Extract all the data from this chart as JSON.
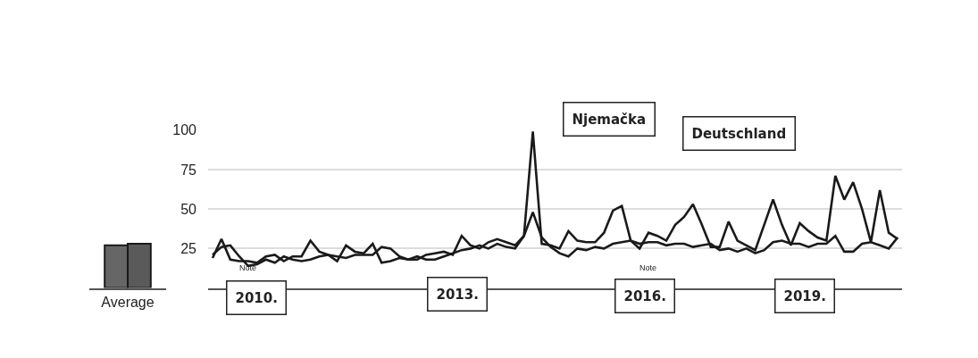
{
  "chart_data": [
    {
      "type": "line",
      "categories": [
        null,
        null,
        null,
        null,
        null,
        null,
        null,
        null,
        null,
        null,
        null,
        null,
        null,
        null,
        null,
        null,
        null,
        null,
        null,
        null,
        null,
        null,
        null,
        null,
        null,
        null,
        null,
        null,
        null,
        null,
        null,
        null,
        null,
        null,
        null,
        null,
        null,
        null,
        null,
        null,
        null,
        null,
        null,
        null,
        null,
        null,
        null,
        null,
        null,
        null,
        null,
        null,
        null,
        null,
        null,
        null,
        null,
        null,
        null,
        null,
        null,
        null,
        null,
        null,
        null,
        null,
        null,
        null,
        null,
        null,
        null,
        null,
        null,
        null,
        null,
        null,
        null,
        null
      ],
      "series": [
        {
          "color": "#1a1a1a",
          "values": [
            19,
            31,
            18,
            17,
            17,
            16,
            20,
            21,
            17,
            20,
            20,
            30,
            23,
            21,
            17,
            27,
            23,
            22,
            28,
            16,
            17,
            19,
            18,
            20,
            18,
            18,
            20,
            22,
            24,
            25,
            27,
            25,
            28,
            26,
            25,
            33,
            99,
            28,
            27,
            25,
            36,
            30,
            29,
            29,
            35,
            49,
            52,
            30,
            25,
            35,
            33,
            30,
            40,
            45,
            53,
            40,
            26,
            26,
            42,
            30,
            27,
            24,
            40,
            56,
            40,
            27,
            41,
            36,
            32,
            30,
            71,
            56,
            67,
            50,
            29,
            62,
            35,
            31
          ]
        },
        {
          "color": "#1a1a1a",
          "values": [
            21,
            26,
            27,
            20,
            14,
            15,
            18,
            16,
            20,
            18,
            17,
            18,
            20,
            21,
            20,
            19,
            21,
            21,
            21,
            26,
            25,
            20,
            18,
            18,
            21,
            22,
            23,
            21,
            33,
            27,
            25,
            29,
            31,
            29,
            27,
            33,
            48,
            32,
            26,
            22,
            20,
            25,
            24,
            26,
            25,
            28,
            29,
            30,
            28,
            29,
            29,
            27,
            28,
            28,
            26,
            27,
            28,
            24,
            25,
            23,
            25,
            22,
            24,
            29,
            30,
            28,
            28,
            26,
            28,
            28,
            33,
            23,
            23,
            28,
            29,
            27,
            25,
            32
          ]
        }
      ],
      "ylim": [
        0,
        100
      ],
      "yticks": [
        25,
        50,
        75,
        100
      ],
      "grid": "y",
      "tick_labels": "y",
      "marker": "none",
      "line_style": "solid",
      "annotations": [
        "Njemačka",
        "Deutschland",
        "2010.",
        "2013.",
        "2016.",
        "2019.",
        "Note",
        "Note"
      ]
    },
    {
      "type": "bar",
      "categories": [
        "Average"
      ],
      "series": [
        {
          "color": "#666666",
          "values": [
            27
          ]
        },
        {
          "color": "#5a5a5a",
          "values": [
            28
          ]
        }
      ],
      "ylim": [
        0,
        100
      ],
      "tick_labels": "x"
    }
  ]
}
